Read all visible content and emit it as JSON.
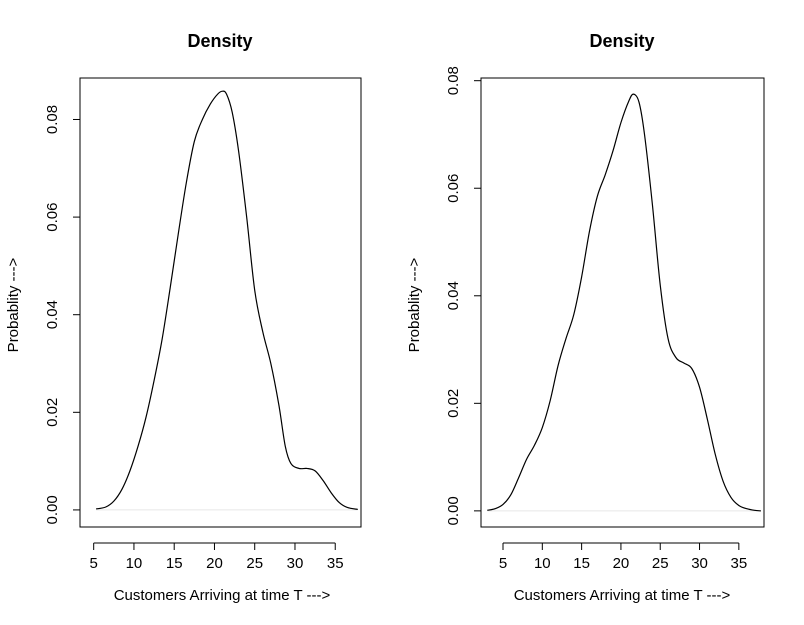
{
  "chart_data": [
    {
      "type": "line",
      "title": "Density",
      "xlabel": "Customers Arriving at time T --->",
      "ylabel": "Probablity --->",
      "xlim": [
        3.3,
        38.2
      ],
      "ylim": [
        -0.0035,
        0.0885
      ],
      "xticks": [
        5,
        10,
        15,
        20,
        25,
        30,
        35
      ],
      "yticks": [
        0.0,
        0.02,
        0.04,
        0.06,
        0.08
      ],
      "ytick_labels": [
        "0.00",
        "0.02",
        "0.04",
        "0.06",
        "0.08"
      ],
      "grid": false,
      "series": [
        {
          "name": "density",
          "x": [
            5.3,
            6.5,
            7.5,
            8.5,
            9.5,
            10.5,
            11.5,
            12.5,
            13.5,
            14.5,
            15.5,
            16.5,
            17.5,
            18.5,
            19.5,
            20.4,
            21.0,
            21.5,
            22.2,
            23.0,
            24.0,
            25.0,
            26.0,
            27.0,
            28.0,
            28.8,
            29.5,
            30.5,
            31.5,
            32.5,
            33.5,
            34.5,
            35.5,
            36.5,
            37.8
          ],
          "y": [
            0.0002,
            0.0006,
            0.0018,
            0.0042,
            0.008,
            0.013,
            0.019,
            0.0265,
            0.035,
            0.0455,
            0.0565,
            0.067,
            0.0755,
            0.08,
            0.0832,
            0.0852,
            0.0858,
            0.0852,
            0.0815,
            0.0735,
            0.06,
            0.045,
            0.0365,
            0.03,
            0.0215,
            0.013,
            0.0095,
            0.0085,
            0.0085,
            0.008,
            0.006,
            0.0035,
            0.0015,
            0.0005,
            0.0001
          ]
        }
      ]
    },
    {
      "type": "line",
      "title": "Density",
      "xlabel": "Customers Arriving at time T --->",
      "ylabel": "Probablity --->",
      "xlim": [
        2.2,
        38.2
      ],
      "ylim": [
        -0.003,
        0.0805
      ],
      "xticks": [
        5,
        10,
        15,
        20,
        25,
        30,
        35
      ],
      "yticks": [
        0.0,
        0.02,
        0.04,
        0.06,
        0.08
      ],
      "ytick_labels": [
        "0.00",
        "0.02",
        "0.04",
        "0.06",
        "0.08"
      ],
      "grid": false,
      "series": [
        {
          "name": "density",
          "x": [
            3.0,
            4.0,
            5.0,
            6.0,
            7.0,
            8.0,
            9.0,
            10.0,
            11.0,
            12.0,
            13.0,
            14.0,
            15.0,
            16.0,
            17.0,
            18.0,
            19.0,
            20.0,
            21.0,
            21.6,
            22.3,
            23.0,
            24.0,
            25.0,
            26.0,
            27.0,
            28.0,
            29.0,
            30.0,
            31.0,
            32.0,
            33.0,
            34.0,
            35.0,
            36.0,
            37.0,
            37.8
          ],
          "y": [
            0.0001,
            0.0004,
            0.0012,
            0.003,
            0.0062,
            0.0096,
            0.0122,
            0.0155,
            0.0205,
            0.027,
            0.032,
            0.0365,
            0.0435,
            0.052,
            0.0585,
            0.0625,
            0.067,
            0.0722,
            0.0762,
            0.0775,
            0.076,
            0.07,
            0.057,
            0.042,
            0.032,
            0.0285,
            0.0275,
            0.0265,
            0.023,
            0.017,
            0.0105,
            0.0055,
            0.0025,
            0.001,
            0.0004,
            0.0001,
            0.0
          ]
        }
      ]
    }
  ]
}
